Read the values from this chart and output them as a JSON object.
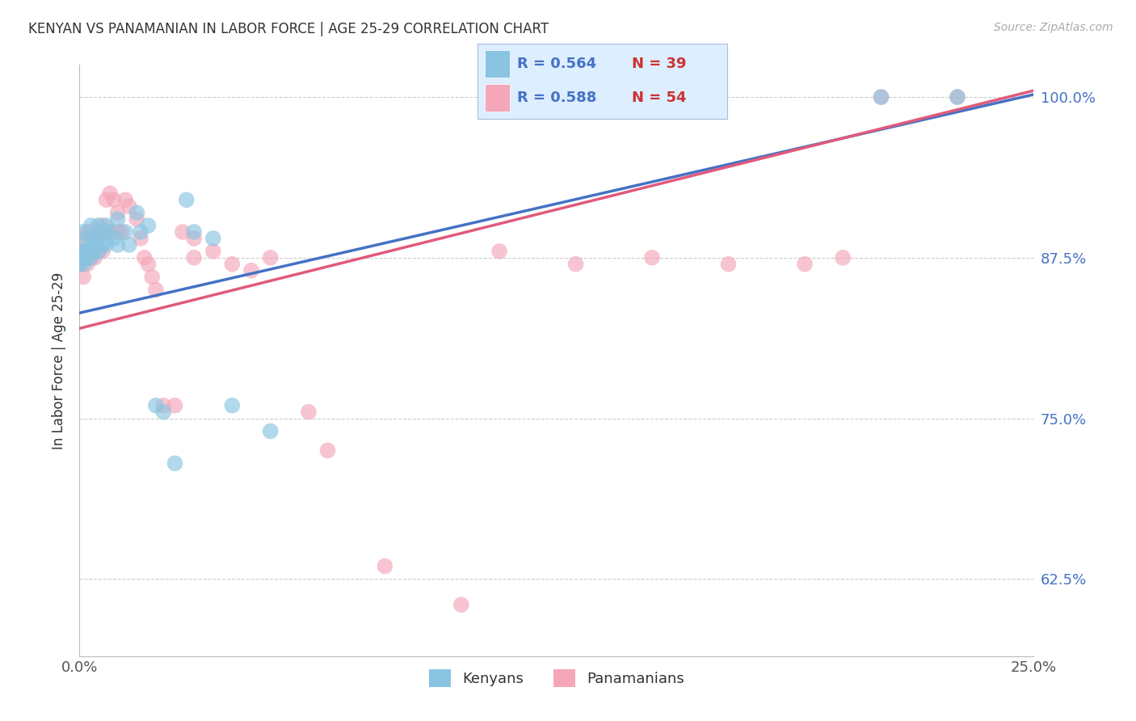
{
  "title": "KENYAN VS PANAMANIAN IN LABOR FORCE | AGE 25-29 CORRELATION CHART",
  "source": "Source: ZipAtlas.com",
  "ylabel": "In Labor Force | Age 25-29",
  "xmin": 0.0,
  "xmax": 0.25,
  "ymin": 0.565,
  "ymax": 1.025,
  "yticks": [
    0.625,
    0.75,
    0.875,
    1.0
  ],
  "ytick_labels": [
    "62.5%",
    "75.0%",
    "87.5%",
    "100.0%"
  ],
  "xticks": [
    0.0,
    0.05,
    0.1,
    0.15,
    0.2,
    0.25
  ],
  "xtick_labels": [
    "0.0%",
    "",
    "",
    "",
    "",
    "25.0%"
  ],
  "blue_color": "#89c4e1",
  "pink_color": "#f4a7b9",
  "blue_line_color": "#4472c4",
  "pink_line_color": "#e05a7a",
  "grid_color": "#cccccc",
  "blue_line_y0": 0.832,
  "blue_line_y1": 1.002,
  "pink_line_y0": 0.82,
  "pink_line_y1": 1.005,
  "kenyan_points": [
    [
      0.0,
      0.88
    ],
    [
      0.0,
      0.87
    ],
    [
      0.001,
      0.895
    ],
    [
      0.001,
      0.88
    ],
    [
      0.001,
      0.87
    ],
    [
      0.002,
      0.89
    ],
    [
      0.002,
      0.88
    ],
    [
      0.002,
      0.875
    ],
    [
      0.003,
      0.9
    ],
    [
      0.003,
      0.885
    ],
    [
      0.003,
      0.875
    ],
    [
      0.004,
      0.89
    ],
    [
      0.004,
      0.88
    ],
    [
      0.005,
      0.9
    ],
    [
      0.005,
      0.89
    ],
    [
      0.005,
      0.88
    ],
    [
      0.006,
      0.895
    ],
    [
      0.006,
      0.885
    ],
    [
      0.007,
      0.9
    ],
    [
      0.007,
      0.885
    ],
    [
      0.008,
      0.895
    ],
    [
      0.009,
      0.89
    ],
    [
      0.01,
      0.905
    ],
    [
      0.01,
      0.885
    ],
    [
      0.012,
      0.895
    ],
    [
      0.013,
      0.885
    ],
    [
      0.015,
      0.91
    ],
    [
      0.016,
      0.895
    ],
    [
      0.018,
      0.9
    ],
    [
      0.02,
      0.76
    ],
    [
      0.022,
      0.755
    ],
    [
      0.025,
      0.715
    ],
    [
      0.028,
      0.92
    ],
    [
      0.03,
      0.895
    ],
    [
      0.035,
      0.89
    ],
    [
      0.04,
      0.76
    ],
    [
      0.05,
      0.74
    ],
    [
      0.21,
      1.0
    ],
    [
      0.23,
      1.0
    ]
  ],
  "panamanian_points": [
    [
      0.0,
      0.88
    ],
    [
      0.0,
      0.87
    ],
    [
      0.001,
      0.89
    ],
    [
      0.001,
      0.875
    ],
    [
      0.001,
      0.86
    ],
    [
      0.002,
      0.895
    ],
    [
      0.002,
      0.88
    ],
    [
      0.002,
      0.87
    ],
    [
      0.003,
      0.895
    ],
    [
      0.003,
      0.875
    ],
    [
      0.004,
      0.89
    ],
    [
      0.004,
      0.875
    ],
    [
      0.005,
      0.895
    ],
    [
      0.005,
      0.88
    ],
    [
      0.006,
      0.9
    ],
    [
      0.006,
      0.88
    ],
    [
      0.007,
      0.92
    ],
    [
      0.007,
      0.895
    ],
    [
      0.008,
      0.925
    ],
    [
      0.008,
      0.895
    ],
    [
      0.009,
      0.92
    ],
    [
      0.01,
      0.91
    ],
    [
      0.01,
      0.895
    ],
    [
      0.011,
      0.895
    ],
    [
      0.012,
      0.92
    ],
    [
      0.013,
      0.915
    ],
    [
      0.015,
      0.905
    ],
    [
      0.016,
      0.89
    ],
    [
      0.017,
      0.875
    ],
    [
      0.018,
      0.87
    ],
    [
      0.019,
      0.86
    ],
    [
      0.02,
      0.85
    ],
    [
      0.022,
      0.76
    ],
    [
      0.025,
      0.76
    ],
    [
      0.027,
      0.895
    ],
    [
      0.03,
      0.89
    ],
    [
      0.03,
      0.875
    ],
    [
      0.035,
      0.88
    ],
    [
      0.04,
      0.87
    ],
    [
      0.045,
      0.865
    ],
    [
      0.05,
      0.875
    ],
    [
      0.06,
      0.755
    ],
    [
      0.065,
      0.725
    ],
    [
      0.08,
      0.635
    ],
    [
      0.1,
      0.605
    ],
    [
      0.11,
      0.88
    ],
    [
      0.13,
      0.87
    ],
    [
      0.15,
      0.875
    ],
    [
      0.17,
      0.87
    ],
    [
      0.19,
      0.87
    ],
    [
      0.2,
      0.875
    ],
    [
      0.21,
      1.0
    ],
    [
      0.23,
      1.0
    ]
  ]
}
